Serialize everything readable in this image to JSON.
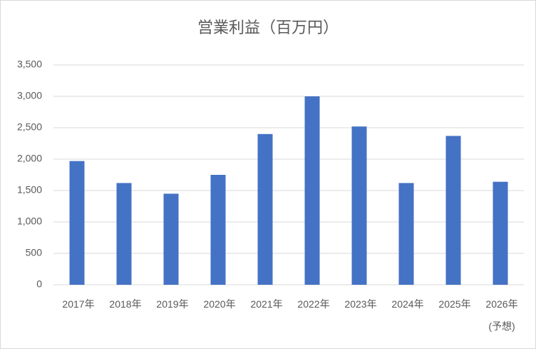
{
  "chart_data": {
    "type": "bar",
    "title": "営業利益（百万円）",
    "categories": [
      "2017年",
      "2018年",
      "2019年",
      "2020年",
      "2021年",
      "2022年",
      "2023年",
      "2024年",
      "2025年",
      "2026年\n(予想)"
    ],
    "values": [
      1970,
      1620,
      1450,
      1750,
      2400,
      3000,
      2520,
      1620,
      2370,
      1640
    ],
    "color": "#4472c4",
    "ylim": [
      0,
      3500
    ],
    "yticks": [
      0,
      500,
      {
        "value": 1000,
        "label": "1,000"
      },
      {
        "value": 1500,
        "label": "1,500"
      },
      {
        "value": 2000,
        "label": "2,000"
      },
      {
        "value": 2500,
        "label": "2,500"
      },
      {
        "value": 3000,
        "label": "3,000"
      },
      {
        "value": 3500,
        "label": "3,500"
      }
    ],
    "grid": true
  }
}
